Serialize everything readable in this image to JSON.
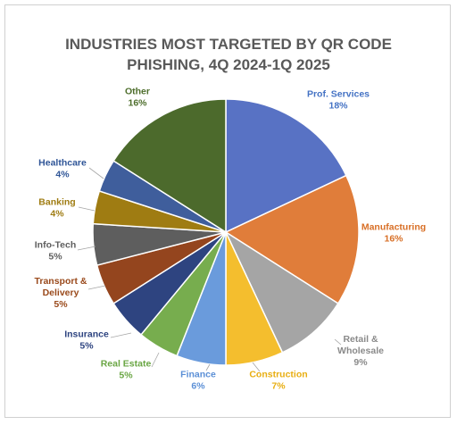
{
  "chart_data": {
    "type": "pie",
    "title_lines": [
      "INDUSTRIES MOST TARGETED BY QR CODE",
      "PHISHING, 4Q 2024-1Q 2025"
    ],
    "slices": [
      {
        "label": "Prof. Services",
        "label_lines": [
          "Prof. Services"
        ],
        "value": 18,
        "pct_text": "18%",
        "color": "#5872C4",
        "label_color": "#4472C4"
      },
      {
        "label": "Manufacturing",
        "label_lines": [
          "Manufacturing"
        ],
        "value": 16,
        "pct_text": "16%",
        "color": "#E07D3A",
        "label_color": "#D86F26"
      },
      {
        "label": "Retail & Wholesale",
        "label_lines": [
          "Retail &",
          "Wholesale"
        ],
        "value": 9,
        "pct_text": "9%",
        "color": "#A5A5A5",
        "label_color": "#8A8A8A"
      },
      {
        "label": "Construction",
        "label_lines": [
          "Construction"
        ],
        "value": 7,
        "pct_text": "7%",
        "color": "#F4BE2E",
        "label_color": "#E8AE12"
      },
      {
        "label": "Finance",
        "label_lines": [
          "Finance"
        ],
        "value": 6,
        "pct_text": "6%",
        "color": "#6A9BDC",
        "label_color": "#5B8FD6"
      },
      {
        "label": "Real Estate",
        "label_lines": [
          "Real Estate"
        ],
        "value": 5,
        "pct_text": "5%",
        "color": "#77AD4E",
        "label_color": "#6AA644"
      },
      {
        "label": "Insurance",
        "label_lines": [
          "Insurance"
        ],
        "value": 5,
        "pct_text": "5%",
        "color": "#2E4480",
        "label_color": "#2E4480"
      },
      {
        "label": "Transport & Delivery",
        "label_lines": [
          "Transport &",
          "Delivery"
        ],
        "value": 5,
        "pct_text": "5%",
        "color": "#94451E",
        "label_color": "#9A4A1C"
      },
      {
        "label": "Info-Tech",
        "label_lines": [
          "Info-Tech"
        ],
        "value": 5,
        "pct_text": "5%",
        "color": "#5E5E5E",
        "label_color": "#5E5E5E"
      },
      {
        "label": "Banking",
        "label_lines": [
          "Banking"
        ],
        "value": 4,
        "pct_text": "4%",
        "color": "#9F7C12",
        "label_color": "#9F7C12"
      },
      {
        "label": "Healthcare",
        "label_lines": [
          "Healthcare"
        ],
        "value": 4,
        "pct_text": "4%",
        "color": "#3F5E9C",
        "label_color": "#2F5597"
      },
      {
        "label": "Other",
        "label_lines": [
          "Other"
        ],
        "value": 16,
        "pct_text": "16%",
        "color": "#4C6A2C",
        "label_color": "#4E6E2C"
      }
    ],
    "start_angle": "12 o'clock",
    "direction": "clockwise",
    "legend": "none (data labels outside slices)"
  }
}
